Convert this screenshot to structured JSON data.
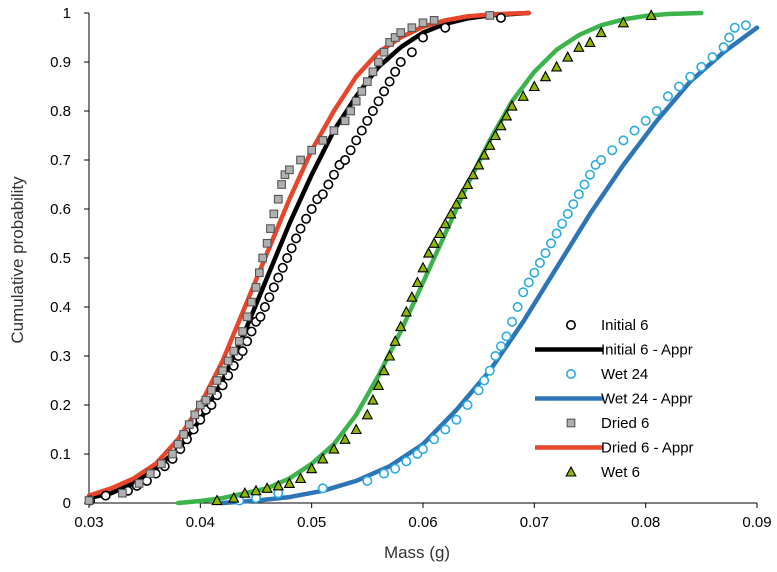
{
  "chart_data": {
    "type": "scatter",
    "title": "",
    "xlabel": "Mass (g)",
    "ylabel": "Cumulative probability",
    "xlim": [
      0.03,
      0.09
    ],
    "ylim": [
      0,
      1
    ],
    "x_ticks": [
      "0.03",
      "0.04",
      "0.05",
      "0.06",
      "0.07",
      "0.08",
      "0.09"
    ],
    "y_ticks": [
      "0",
      "0.1",
      "0.2",
      "0.3",
      "0.4",
      "0.5",
      "0.6",
      "0.7",
      "0.8",
      "0.9",
      "1"
    ],
    "grid": false,
    "legend_position": "bottom-right",
    "series": [
      {
        "name": "Initial 6",
        "kind": "markers",
        "marker": "circle",
        "color": "#000000",
        "fill": "#ffffff",
        "x": [
          0.0301,
          0.0315,
          0.0335,
          0.0343,
          0.0352,
          0.036,
          0.0368,
          0.0375,
          0.0382,
          0.0388,
          0.0394,
          0.04,
          0.0405,
          0.041,
          0.0415,
          0.042,
          0.0425,
          0.043,
          0.0434,
          0.0438,
          0.0442,
          0.0446,
          0.045,
          0.0454,
          0.0458,
          0.0462,
          0.0466,
          0.047,
          0.0474,
          0.0478,
          0.0482,
          0.0486,
          0.049,
          0.0495,
          0.05,
          0.0505,
          0.051,
          0.0515,
          0.052,
          0.0525,
          0.053,
          0.0535,
          0.054,
          0.0545,
          0.055,
          0.0555,
          0.056,
          0.0565,
          0.057,
          0.0575,
          0.058,
          0.059,
          0.06,
          0.062,
          0.067
        ],
        "y": [
          0.005,
          0.015,
          0.025,
          0.035,
          0.045,
          0.06,
          0.075,
          0.09,
          0.11,
          0.13,
          0.15,
          0.17,
          0.19,
          0.2,
          0.22,
          0.24,
          0.26,
          0.28,
          0.3,
          0.31,
          0.33,
          0.35,
          0.37,
          0.38,
          0.4,
          0.42,
          0.44,
          0.46,
          0.48,
          0.5,
          0.52,
          0.54,
          0.56,
          0.58,
          0.6,
          0.62,
          0.63,
          0.65,
          0.67,
          0.69,
          0.7,
          0.72,
          0.74,
          0.76,
          0.78,
          0.8,
          0.82,
          0.84,
          0.86,
          0.88,
          0.9,
          0.92,
          0.95,
          0.97,
          0.99
        ]
      },
      {
        "name": "Initial 6 - Appr",
        "kind": "line",
        "color": "#000000",
        "x": [
          0.03,
          0.032,
          0.034,
          0.036,
          0.038,
          0.04,
          0.042,
          0.044,
          0.046,
          0.048,
          0.05,
          0.052,
          0.054,
          0.056,
          0.058,
          0.06,
          0.062,
          0.064,
          0.066,
          0.068,
          0.0695
        ],
        "y": [
          0.01,
          0.02,
          0.04,
          0.07,
          0.11,
          0.17,
          0.25,
          0.35,
          0.46,
          0.57,
          0.67,
          0.76,
          0.83,
          0.89,
          0.93,
          0.96,
          0.978,
          0.989,
          0.995,
          0.998,
          1.0
        ]
      },
      {
        "name": "Wet 24",
        "kind": "markers",
        "marker": "circle",
        "color": "#29abe2",
        "fill": "#ffffff",
        "x": [
          0.0435,
          0.045,
          0.047,
          0.051,
          0.055,
          0.0565,
          0.0575,
          0.0585,
          0.0595,
          0.06,
          0.061,
          0.062,
          0.063,
          0.064,
          0.065,
          0.0655,
          0.066,
          0.0665,
          0.067,
          0.0675,
          0.068,
          0.0685,
          0.069,
          0.0695,
          0.07,
          0.0705,
          0.071,
          0.0715,
          0.072,
          0.0725,
          0.073,
          0.0735,
          0.074,
          0.0745,
          0.075,
          0.0755,
          0.076,
          0.077,
          0.078,
          0.079,
          0.08,
          0.081,
          0.082,
          0.083,
          0.084,
          0.085,
          0.086,
          0.087,
          0.0875,
          0.088,
          0.089
        ],
        "y": [
          0.005,
          0.01,
          0.02,
          0.03,
          0.045,
          0.06,
          0.07,
          0.085,
          0.1,
          0.11,
          0.13,
          0.15,
          0.17,
          0.2,
          0.23,
          0.25,
          0.27,
          0.3,
          0.32,
          0.34,
          0.37,
          0.4,
          0.43,
          0.45,
          0.47,
          0.49,
          0.51,
          0.53,
          0.55,
          0.57,
          0.59,
          0.61,
          0.63,
          0.65,
          0.67,
          0.69,
          0.7,
          0.72,
          0.74,
          0.76,
          0.78,
          0.8,
          0.83,
          0.85,
          0.87,
          0.89,
          0.91,
          0.93,
          0.95,
          0.97,
          0.975
        ]
      },
      {
        "name": "Wet 24 - Appr",
        "kind": "line",
        "color": "#2e75b6",
        "x": [
          0.042,
          0.045,
          0.048,
          0.051,
          0.054,
          0.057,
          0.06,
          0.063,
          0.066,
          0.069,
          0.072,
          0.075,
          0.078,
          0.081,
          0.084,
          0.087,
          0.09
        ],
        "y": [
          0.0,
          0.005,
          0.012,
          0.025,
          0.045,
          0.075,
          0.12,
          0.19,
          0.27,
          0.37,
          0.48,
          0.59,
          0.69,
          0.78,
          0.86,
          0.92,
          0.97
        ]
      },
      {
        "name": "Dried 6",
        "kind": "markers",
        "marker": "square",
        "color": "#555555",
        "fill": "#b0b0b0",
        "x": [
          0.03,
          0.033,
          0.0345,
          0.0355,
          0.0365,
          0.0375,
          0.038,
          0.0385,
          0.039,
          0.0395,
          0.04,
          0.0405,
          0.041,
          0.0415,
          0.042,
          0.0425,
          0.043,
          0.0435,
          0.0438,
          0.0442,
          0.0446,
          0.045,
          0.0453,
          0.0456,
          0.046,
          0.0463,
          0.0466,
          0.047,
          0.0473,
          0.0476,
          0.048,
          0.049,
          0.05,
          0.051,
          0.052,
          0.053,
          0.0535,
          0.054,
          0.0545,
          0.055,
          0.0555,
          0.056,
          0.0565,
          0.057,
          0.0575,
          0.058,
          0.059,
          0.06,
          0.061,
          0.066
        ],
        "y": [
          0.005,
          0.02,
          0.04,
          0.06,
          0.08,
          0.1,
          0.12,
          0.14,
          0.16,
          0.18,
          0.2,
          0.21,
          0.23,
          0.25,
          0.27,
          0.29,
          0.31,
          0.33,
          0.35,
          0.38,
          0.41,
          0.44,
          0.47,
          0.5,
          0.53,
          0.56,
          0.59,
          0.62,
          0.65,
          0.67,
          0.68,
          0.7,
          0.72,
          0.74,
          0.76,
          0.78,
          0.8,
          0.82,
          0.84,
          0.86,
          0.88,
          0.9,
          0.92,
          0.94,
          0.95,
          0.96,
          0.97,
          0.98,
          0.985,
          0.995
        ]
      },
      {
        "name": "Dried 6 - Appr",
        "kind": "line",
        "color": "#e8462a",
        "x": [
          0.03,
          0.032,
          0.034,
          0.036,
          0.038,
          0.04,
          0.042,
          0.044,
          0.046,
          0.048,
          0.05,
          0.052,
          0.054,
          0.056,
          0.058,
          0.06,
          0.062,
          0.064,
          0.066,
          0.068,
          0.0695
        ],
        "y": [
          0.015,
          0.03,
          0.05,
          0.08,
          0.13,
          0.2,
          0.29,
          0.4,
          0.51,
          0.62,
          0.72,
          0.8,
          0.87,
          0.92,
          0.95,
          0.972,
          0.985,
          0.993,
          0.997,
          0.999,
          1.0
        ]
      },
      {
        "name": "Wet 6",
        "kind": "markers",
        "marker": "triangle",
        "color": "#000000",
        "fill": "#8db600",
        "x": [
          0.0415,
          0.043,
          0.044,
          0.045,
          0.046,
          0.047,
          0.048,
          0.049,
          0.05,
          0.051,
          0.052,
          0.053,
          0.054,
          0.055,
          0.0555,
          0.056,
          0.0565,
          0.057,
          0.0575,
          0.058,
          0.0585,
          0.059,
          0.0595,
          0.06,
          0.0605,
          0.061,
          0.0615,
          0.062,
          0.0625,
          0.063,
          0.0635,
          0.064,
          0.0645,
          0.065,
          0.0655,
          0.066,
          0.0665,
          0.067,
          0.0675,
          0.068,
          0.069,
          0.07,
          0.071,
          0.072,
          0.073,
          0.074,
          0.075,
          0.076,
          0.078,
          0.0805
        ],
        "y": [
          0.005,
          0.01,
          0.02,
          0.025,
          0.03,
          0.035,
          0.04,
          0.05,
          0.07,
          0.09,
          0.11,
          0.13,
          0.15,
          0.18,
          0.21,
          0.24,
          0.27,
          0.3,
          0.33,
          0.36,
          0.39,
          0.42,
          0.45,
          0.48,
          0.51,
          0.53,
          0.55,
          0.57,
          0.59,
          0.61,
          0.63,
          0.65,
          0.67,
          0.69,
          0.71,
          0.73,
          0.75,
          0.77,
          0.79,
          0.81,
          0.83,
          0.85,
          0.87,
          0.89,
          0.91,
          0.93,
          0.94,
          0.96,
          0.98,
          0.995
        ]
      },
      {
        "name": "",
        "kind": "line",
        "color": "#3cb44b",
        "x": [
          0.038,
          0.04,
          0.042,
          0.044,
          0.046,
          0.048,
          0.05,
          0.052,
          0.054,
          0.056,
          0.058,
          0.06,
          0.062,
          0.064,
          0.066,
          0.068,
          0.07,
          0.072,
          0.074,
          0.076,
          0.078,
          0.08,
          0.082,
          0.085
        ],
        "y": [
          0.0,
          0.004,
          0.01,
          0.02,
          0.03,
          0.05,
          0.08,
          0.12,
          0.18,
          0.26,
          0.35,
          0.45,
          0.55,
          0.65,
          0.74,
          0.82,
          0.88,
          0.925,
          0.955,
          0.975,
          0.987,
          0.994,
          0.998,
          1.0
        ]
      }
    ],
    "legend_entries": [
      "Initial 6",
      "Initial 6 - Appr",
      "Wet 24",
      "Wet 24 - Appr",
      "Dried 6",
      "Dried 6 - Appr",
      "Wet 6"
    ]
  }
}
